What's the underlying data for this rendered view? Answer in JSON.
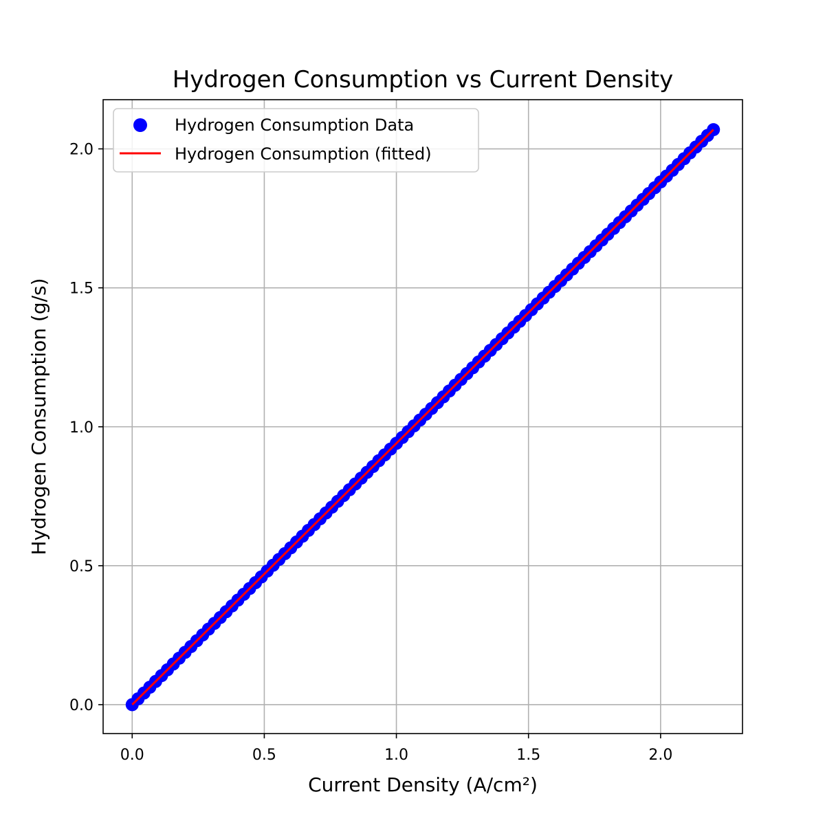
{
  "chart_data": {
    "type": "scatter",
    "title": "Hydrogen Consumption vs Current Density",
    "xlabel": "Current Density (A/cm²)",
    "ylabel": "Hydrogen Consumption (g/s)",
    "xlim": [
      -0.11,
      2.31
    ],
    "ylim": [
      -0.104,
      2.177
    ],
    "xticks": [
      0.0,
      0.5,
      1.0,
      1.5,
      2.0
    ],
    "yticks": [
      0.0,
      0.5,
      1.0,
      1.5,
      2.0
    ],
    "xtick_labels": [
      "0.0",
      "0.5",
      "1.0",
      "1.5",
      "2.0"
    ],
    "ytick_labels": [
      "0.0",
      "0.5",
      "1.0",
      "1.5",
      "2.0"
    ],
    "grid": true,
    "legend_position": "top-left",
    "x_range": [
      0.0,
      2.2
    ],
    "n_points": 100,
    "series": [
      {
        "name": "Hydrogen Consumption Data",
        "kind": "points",
        "color": "#0000ff",
        "slope": 0.9405,
        "intercept": 0.0
      },
      {
        "name": "Hydrogen Consumption (fitted)",
        "kind": "line",
        "color": "#ff0000",
        "slope": 0.9405,
        "intercept": 0.0
      }
    ]
  }
}
